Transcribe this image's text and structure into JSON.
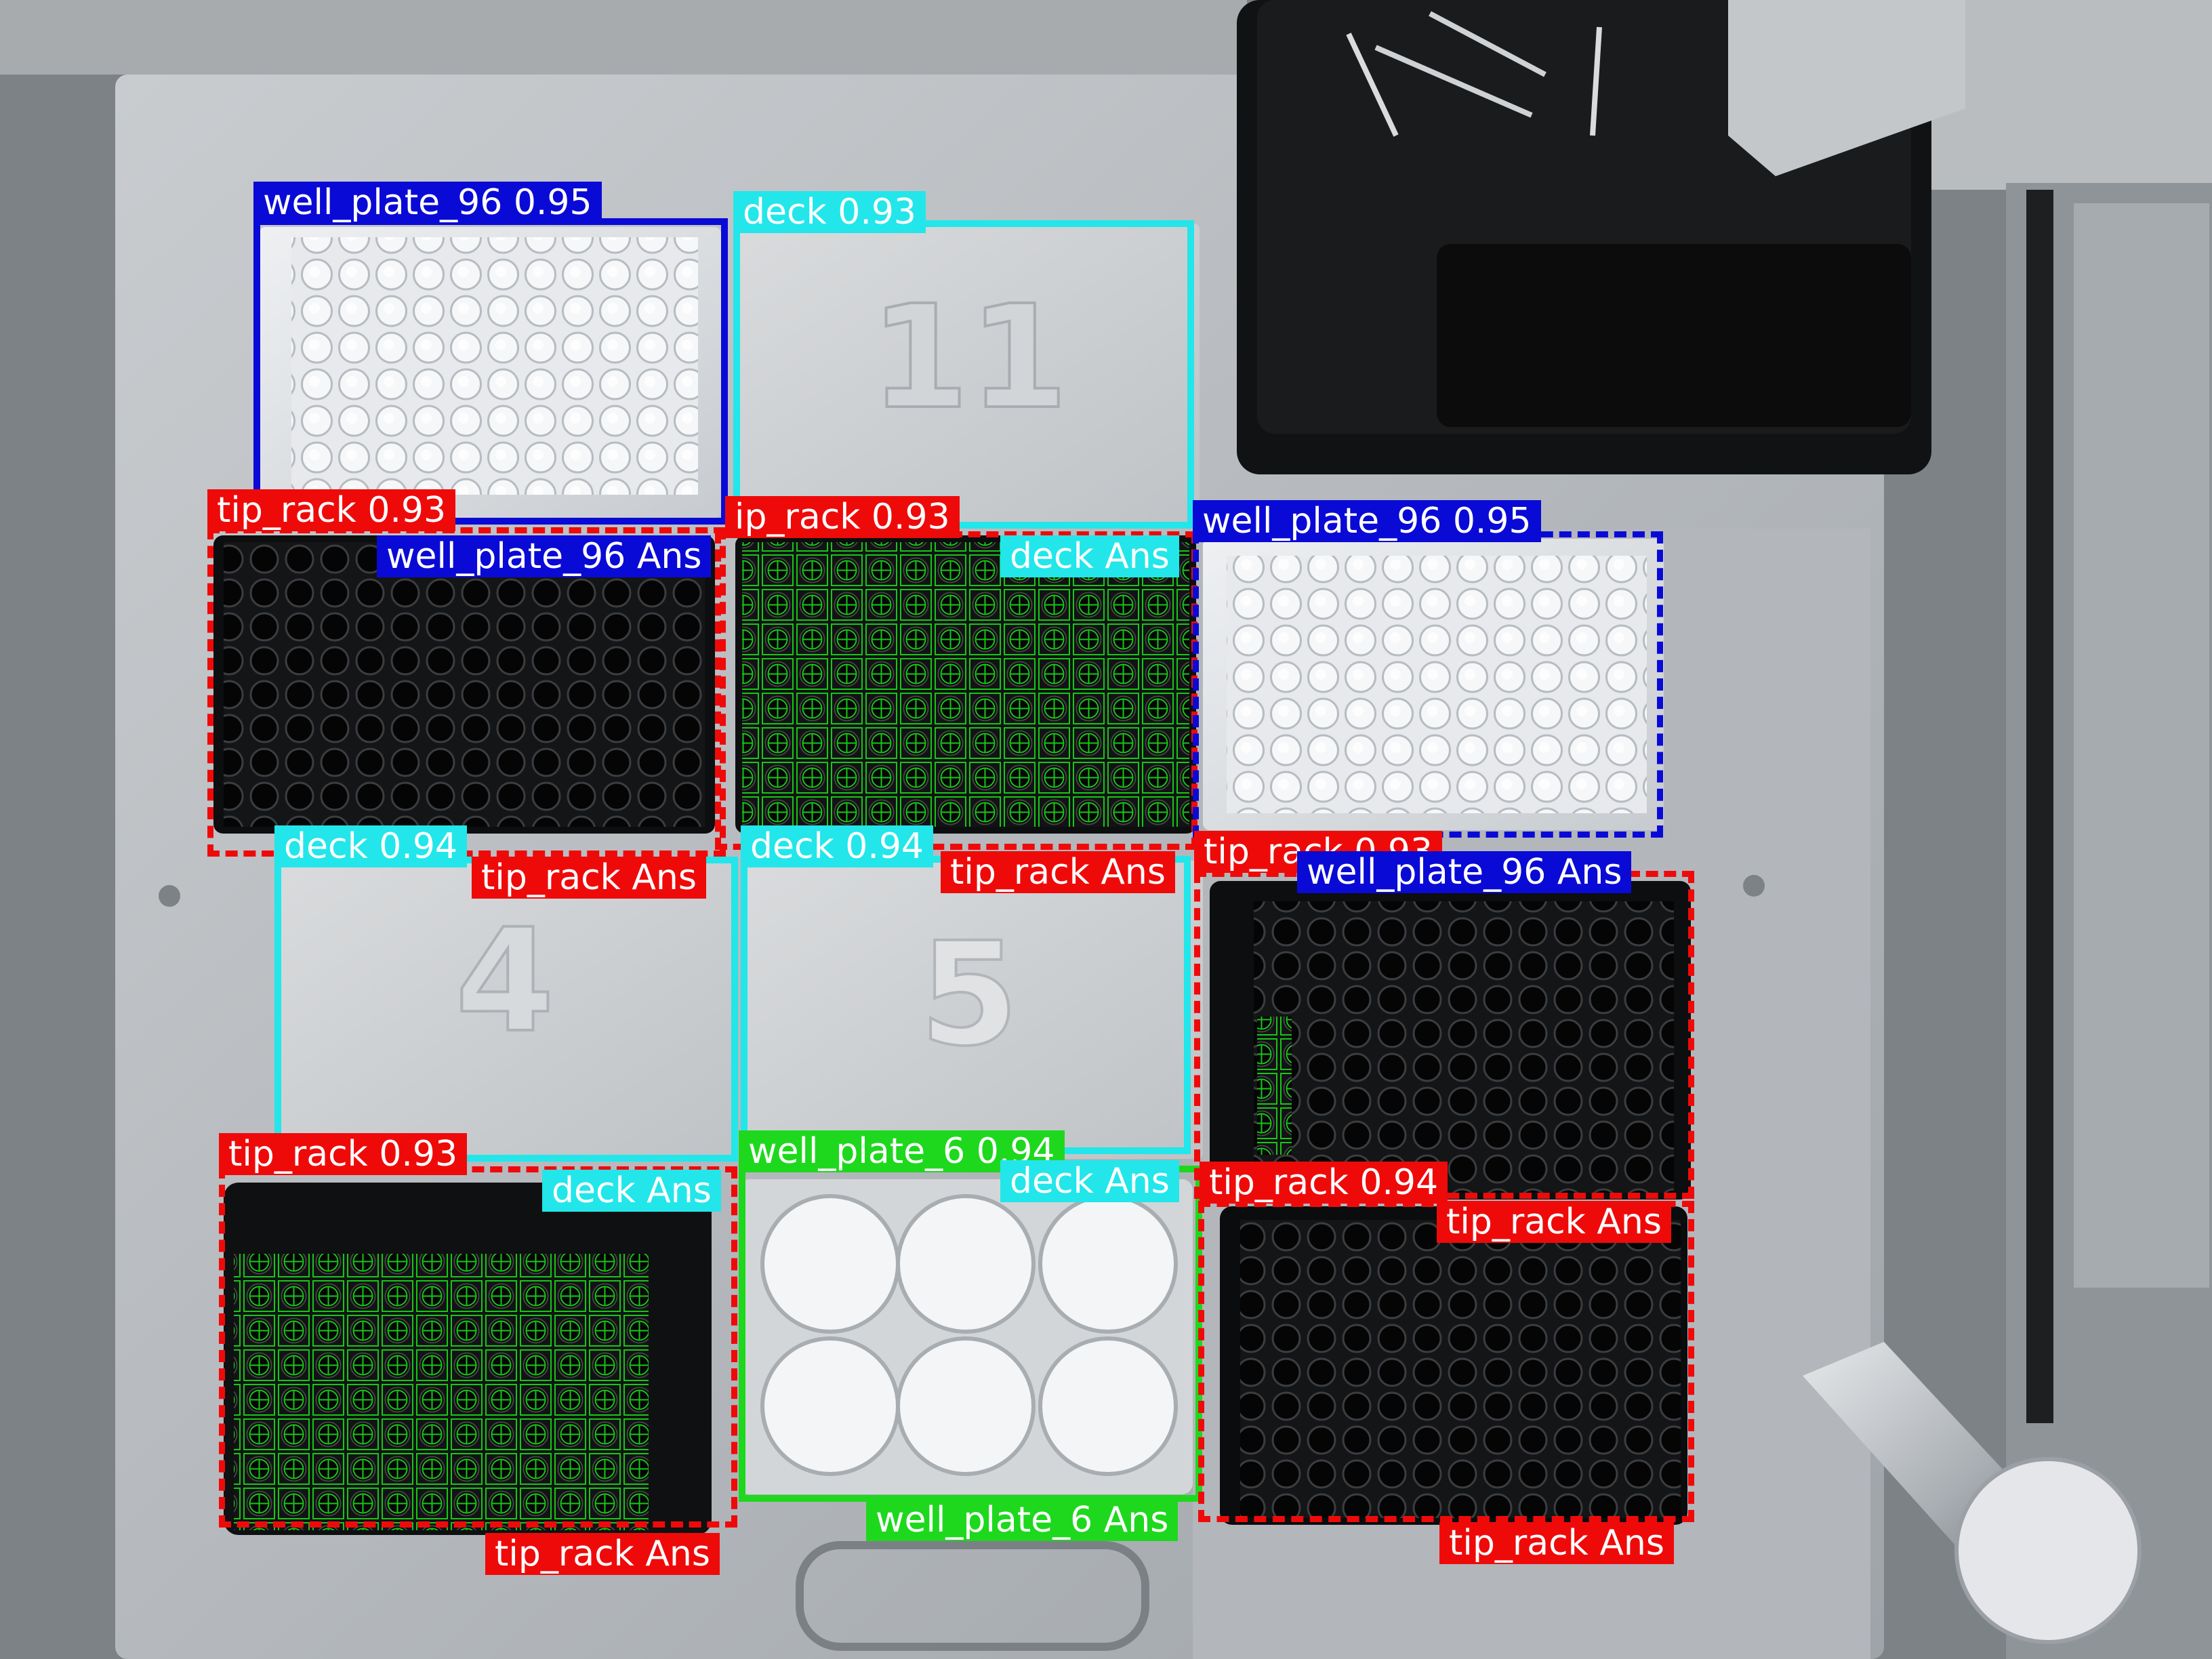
{
  "colors": {
    "well_plate_96": "#0a0ad6",
    "deck": "#22e6ea",
    "tip_rack": "#ef0a0a",
    "well_plate_6": "#1ed81e",
    "tip_marker": "#17c617"
  },
  "labels": {
    "wp96_a": "well_plate_96 0.95",
    "deck_11": "deck 0.93",
    "tiprack_a": "tip_rack 0.93",
    "wp96_ans_a": "well_plate_96 Ans",
    "tiprack_b": "ip_rack 0.93",
    "deck_ans_a": "deck Ans",
    "wp96_b": "well_plate_96 0.95",
    "deck_4": "deck 0.94",
    "tiprack_ans_a": "tip_rack Ans",
    "deck_5": "deck 0.94",
    "tiprack_ans_b": "tip_rack Ans",
    "tiprack_c": "tip_rack 0.93",
    "wp96_ans_b": "well_plate_96 Ans",
    "tiprack_d": "tip_rack 0.93",
    "deck_ans_b": "deck Ans",
    "wp6": "well_plate_6 0.94",
    "deck_ans_c": "deck Ans",
    "tiprack_e": "tip_rack 0.94",
    "tiprack_ans_c": "tip_rack Ans",
    "wp6_ans": "well_plate_6 Ans",
    "tiprack_ans_d": "tip_rack Ans",
    "tiprack_ans_e": "tip_rack Ans"
  },
  "deck_numbers": {
    "slot_11": "11",
    "slot_4": "4",
    "slot_5": "5"
  }
}
